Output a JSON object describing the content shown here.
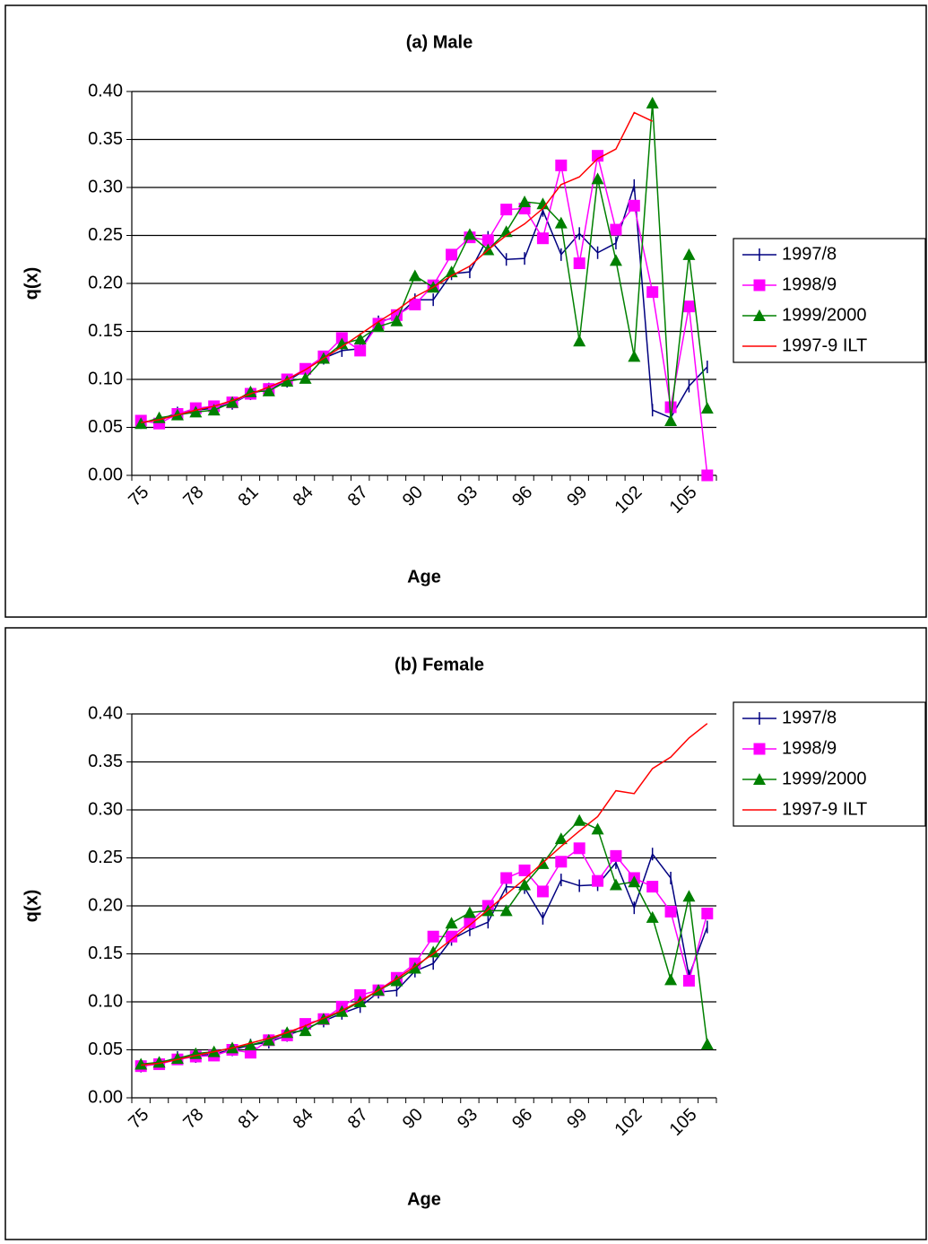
{
  "chart_data": [
    {
      "type": "line",
      "title": "(a) Male",
      "x_label": "Age",
      "y_label": "q(x)",
      "categories": [
        "75",
        null,
        null,
        "78",
        null,
        null,
        "81",
        null,
        null,
        "84",
        null,
        null,
        "87",
        null,
        null,
        "90",
        null,
        null,
        "93",
        null,
        null,
        "96",
        null,
        null,
        "99",
        null,
        null,
        "102",
        null,
        null,
        "105",
        null
      ],
      "ylim": [
        0,
        0.4
      ],
      "yticks": [
        {
          "value": 0,
          "label": "0.00"
        },
        0.05,
        {
          "value": 0.1,
          "label": "0.10"
        },
        0.15,
        {
          "value": 0.2,
          "label": "0.20"
        },
        0.25,
        {
          "value": 0.3,
          "label": "0.30"
        },
        0.35,
        {
          "value": 0.4,
          "label": "0.40"
        }
      ],
      "grid": true,
      "legend": "right",
      "series": [
        {
          "name": "1997/8",
          "color": "#000080",
          "marker": "dash",
          "values": [
            0.055,
            0.058,
            0.065,
            0.068,
            0.07,
            0.075,
            0.085,
            0.09,
            0.098,
            0.11,
            0.122,
            0.13,
            0.132,
            0.16,
            0.165,
            0.183,
            0.183,
            0.21,
            0.212,
            0.248,
            0.225,
            0.226,
            0.276,
            0.23,
            0.252,
            0.232,
            0.242,
            0.302,
            0.068,
            0.06,
            0.093,
            0.113
          ]
        },
        {
          "name": "1998/9",
          "color": "#ff00ff",
          "marker": "square",
          "values": [
            0.057,
            0.054,
            0.064,
            0.07,
            0.072,
            0.076,
            0.085,
            0.09,
            0.1,
            0.111,
            0.124,
            0.143,
            0.13,
            0.158,
            0.167,
            0.178,
            0.198,
            0.23,
            0.248,
            0.245,
            0.277,
            0.278,
            0.247,
            0.323,
            0.221,
            0.333,
            0.256,
            0.281,
            0.191,
            0.071,
            0.176,
            0.0
          ]
        },
        {
          "name": "1999/2000",
          "color": "#008000",
          "marker": "triangle",
          "values": [
            0.054,
            0.06,
            0.063,
            0.066,
            0.068,
            0.076,
            0.087,
            0.088,
            0.098,
            0.101,
            0.122,
            0.137,
            0.142,
            0.155,
            0.161,
            0.208,
            0.196,
            0.212,
            0.251,
            0.235,
            0.254,
            0.285,
            0.283,
            0.263,
            0.14,
            0.309,
            0.224,
            0.124,
            0.388,
            0.057,
            0.23,
            0.07
          ]
        },
        {
          "name": "1997-9 ILT",
          "color": "#ff0000",
          "marker": "none",
          "values": [
            0.055,
            0.058,
            0.063,
            0.068,
            0.072,
            0.078,
            0.085,
            0.092,
            0.1,
            0.11,
            0.122,
            0.134,
            0.147,
            0.16,
            0.172,
            0.186,
            0.196,
            0.208,
            0.218,
            0.235,
            0.25,
            0.262,
            0.278,
            0.303,
            0.311,
            0.33,
            0.34,
            0.378,
            0.369,
            null,
            null,
            null
          ]
        }
      ]
    },
    {
      "type": "line",
      "title": "(b) Female",
      "x_label": "Age",
      "y_label": "q(x)",
      "categories": [
        "75",
        null,
        null,
        "78",
        null,
        null,
        "81",
        null,
        null,
        "84",
        null,
        null,
        "87",
        null,
        null,
        "90",
        null,
        null,
        "93",
        null,
        null,
        "96",
        null,
        null,
        "99",
        null,
        null,
        "102",
        null,
        null,
        "105",
        null
      ],
      "ylim": [
        0,
        0.4
      ],
      "yticks": [
        {
          "value": 0,
          "label": "0.00"
        },
        0.05,
        {
          "value": 0.1,
          "label": "0.10"
        },
        0.15,
        {
          "value": 0.2,
          "label": "0.20"
        },
        0.25,
        {
          "value": 0.3,
          "label": "0.30"
        },
        0.35,
        {
          "value": 0.4,
          "label": "0.40"
        }
      ],
      "grid": true,
      "legend": "right",
      "series": [
        {
          "name": "1997/8",
          "color": "#000080",
          "marker": "dash",
          "values": [
            0.033,
            0.036,
            0.042,
            0.043,
            0.046,
            0.05,
            0.055,
            0.058,
            0.065,
            0.072,
            0.08,
            0.088,
            0.095,
            0.11,
            0.112,
            0.132,
            0.14,
            0.165,
            0.175,
            0.183,
            0.22,
            0.219,
            0.187,
            0.227,
            0.221,
            0.222,
            0.245,
            0.198,
            0.254,
            0.229,
            0.127,
            0.178
          ]
        },
        {
          "name": "1998/9",
          "color": "#ff00ff",
          "marker": "square",
          "values": [
            0.033,
            0.035,
            0.04,
            0.043,
            0.044,
            0.05,
            0.047,
            0.06,
            0.065,
            0.077,
            0.082,
            0.095,
            0.107,
            0.112,
            0.125,
            0.14,
            0.168,
            0.168,
            0.183,
            0.2,
            0.229,
            0.237,
            0.215,
            0.246,
            0.26,
            0.226,
            0.252,
            0.229,
            0.22,
            0.194,
            0.122,
            0.192
          ]
        },
        {
          "name": "1999/2000",
          "color": "#008000",
          "marker": "triangle",
          "values": [
            0.035,
            0.037,
            0.041,
            0.046,
            0.048,
            0.052,
            0.055,
            0.06,
            0.068,
            0.07,
            0.082,
            0.09,
            0.1,
            0.112,
            0.122,
            0.135,
            0.152,
            0.182,
            0.193,
            0.195,
            0.195,
            0.222,
            0.244,
            0.27,
            0.289,
            0.28,
            0.222,
            0.225,
            0.188,
            0.123,
            0.21,
            0.056
          ]
        },
        {
          "name": "1997-9 ILT",
          "color": "#ff0000",
          "marker": "none",
          "values": [
            0.034,
            0.036,
            0.04,
            0.044,
            0.048,
            0.052,
            0.057,
            0.062,
            0.068,
            0.075,
            0.083,
            0.091,
            0.101,
            0.112,
            0.124,
            0.137,
            0.15,
            0.165,
            0.18,
            0.196,
            0.212,
            0.228,
            0.245,
            0.262,
            0.278,
            0.293,
            0.32,
            0.317,
            0.343,
            0.355,
            0.375,
            0.39
          ]
        }
      ]
    }
  ]
}
